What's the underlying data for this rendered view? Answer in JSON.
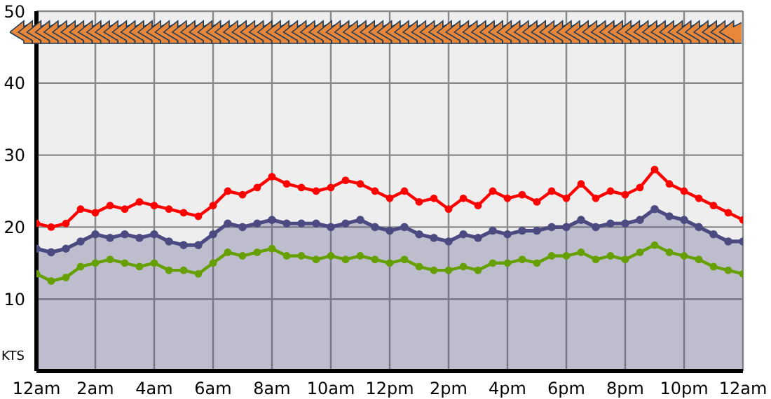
{
  "chart_data": {
    "type": "line",
    "ylabel": "KTS",
    "categories": [
      "12am",
      null,
      null,
      null,
      "2am",
      null,
      null,
      null,
      "4am",
      null,
      null,
      null,
      "6am",
      null,
      null,
      null,
      "8am",
      null,
      null,
      null,
      "10am",
      null,
      null,
      null,
      "12pm",
      null,
      null,
      null,
      "2pm",
      null,
      null,
      null,
      "4pm",
      null,
      null,
      null,
      "6pm",
      null,
      null,
      null,
      "8pm",
      null,
      null,
      null,
      "10pm",
      null,
      null,
      null,
      "12am"
    ],
    "series": [
      {
        "type": "area",
        "color": "#4b4b82",
        "values": [
          17,
          16.5,
          17,
          18,
          19,
          18.5,
          19,
          18.5,
          19,
          18,
          17.5,
          17.5,
          19,
          20.5,
          20,
          20.5,
          21,
          20.5,
          20.5,
          20.5,
          20,
          20.5,
          21,
          20,
          19.5,
          20,
          19,
          18.5,
          18,
          19,
          18.5,
          19.5,
          19,
          19.5,
          19.5,
          20,
          20,
          21,
          20,
          20.5,
          20.5,
          21,
          22.5,
          21.5,
          21,
          20,
          19,
          18,
          18
        ]
      },
      {
        "color": "#ff0000",
        "values": [
          20.5,
          20,
          20.5,
          22.5,
          22,
          23,
          22.5,
          23.5,
          23,
          22.5,
          22,
          21.5,
          23,
          25,
          24.5,
          25.5,
          27,
          26,
          25.5,
          25,
          25.5,
          26.5,
          26,
          25,
          24,
          25,
          23.5,
          24,
          22.5,
          24,
          23,
          25,
          24,
          24.5,
          23.5,
          25,
          24,
          26,
          24,
          25,
          24.5,
          25.5,
          28,
          26,
          25,
          24,
          23,
          22,
          21
        ]
      },
      {
        "color": "#66a000",
        "values": [
          13.5,
          12.5,
          13,
          14.5,
          15,
          15.5,
          15,
          14.5,
          15,
          14,
          14,
          13.5,
          15,
          16.5,
          16,
          16.5,
          17,
          16,
          16,
          15.5,
          16,
          15.5,
          16,
          15.5,
          15,
          15.5,
          14.5,
          14,
          14,
          14.5,
          14,
          15,
          15,
          15.5,
          15,
          16,
          16,
          16.5,
          15.5,
          16,
          15.5,
          16.5,
          17.5,
          16.5,
          16,
          15.5,
          14.5,
          14,
          13.5
        ]
      }
    ],
    "ylim": [
      0,
      50
    ],
    "yticks": [
      10,
      20,
      30,
      40,
      50
    ],
    "grid": true,
    "legend": false,
    "marker": "circle",
    "line_style": "solid"
  }
}
